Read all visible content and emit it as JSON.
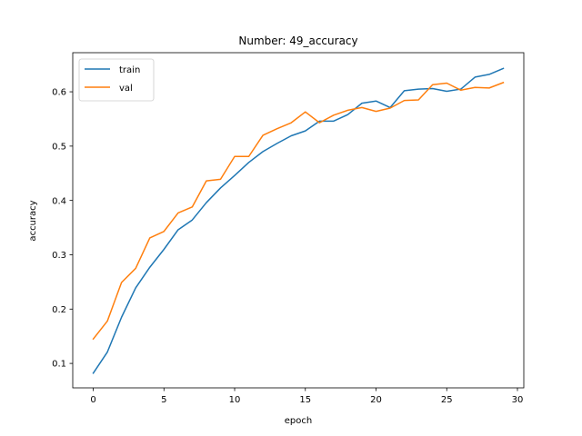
{
  "chart_data": {
    "type": "line",
    "title": "Number: 49_accuracy",
    "xlabel": "epoch",
    "ylabel": "accuracy",
    "xlim": [
      -1.45,
      30.45
    ],
    "ylim": [
      0.055,
      0.672
    ],
    "xticks": [
      0,
      5,
      10,
      15,
      20,
      25,
      30
    ],
    "yticks": [
      0.1,
      0.2,
      0.3,
      0.4,
      0.5,
      0.6
    ],
    "xtick_labels": [
      "0",
      "5",
      "10",
      "15",
      "20",
      "25",
      "30"
    ],
    "ytick_labels": [
      "0.1",
      "0.2",
      "0.3",
      "0.4",
      "0.5",
      "0.6"
    ],
    "grid": false,
    "legend_position": "upper-left",
    "x": [
      0,
      1,
      2,
      3,
      4,
      5,
      6,
      7,
      8,
      9,
      10,
      11,
      12,
      13,
      14,
      15,
      16,
      17,
      18,
      19,
      20,
      21,
      22,
      23,
      24,
      25,
      26,
      27,
      28,
      29
    ],
    "series": [
      {
        "name": "train",
        "color": "#1f77b4",
        "values": [
          0.082,
          0.121,
          0.185,
          0.239,
          0.277,
          0.31,
          0.346,
          0.364,
          0.396,
          0.423,
          0.446,
          0.47,
          0.49,
          0.505,
          0.519,
          0.528,
          0.546,
          0.546,
          0.558,
          0.579,
          0.583,
          0.571,
          0.602,
          0.605,
          0.606,
          0.601,
          0.605,
          0.627,
          0.632,
          0.643
        ]
      },
      {
        "name": "val",
        "color": "#ff7f0e",
        "values": [
          0.145,
          0.178,
          0.249,
          0.275,
          0.331,
          0.343,
          0.377,
          0.388,
          0.436,
          0.439,
          0.481,
          0.481,
          0.52,
          0.532,
          0.543,
          0.563,
          0.543,
          0.557,
          0.566,
          0.571,
          0.564,
          0.57,
          0.584,
          0.585,
          0.613,
          0.616,
          0.603,
          0.608,
          0.607,
          0.617
        ]
      }
    ]
  }
}
